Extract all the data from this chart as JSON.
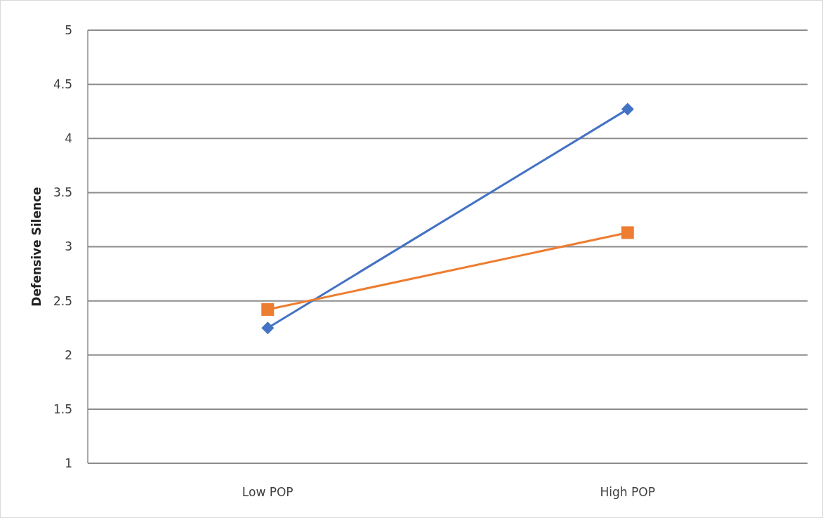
{
  "chart_data": {
    "type": "line",
    "ylabel": "Defensive Silence",
    "categories": [
      "Low POP",
      "High POP"
    ],
    "series": [
      {
        "color": "#4472c4",
        "values": [
          2.25,
          4.27
        ],
        "marker": "diamond"
      },
      {
        "color": "#ed7d31",
        "values": [
          2.42,
          3.13
        ],
        "marker": "square"
      }
    ],
    "ylim": [
      1,
      5
    ],
    "yticks": [
      1,
      1.5,
      2,
      2.5,
      3,
      3.5,
      4,
      4.5,
      5
    ],
    "grid": "y",
    "line_style": "solid"
  }
}
